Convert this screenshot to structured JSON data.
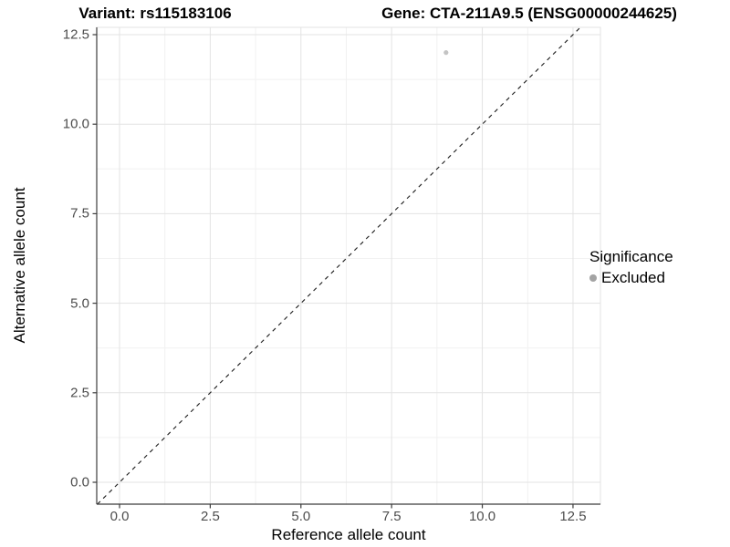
{
  "chart_data": {
    "type": "scatter",
    "titles": {
      "left": "Variant: rs115183106",
      "right": "Gene: CTA-211A9.5 (ENSG00000244625)"
    },
    "xlabel": "Reference allele count",
    "ylabel": "Alternative allele count",
    "x_ticks": {
      "values": [
        0,
        2.5,
        5,
        7.5,
        10,
        12.5
      ],
      "labels": [
        "0.0",
        "2.5",
        "5.0",
        "7.5",
        "10.0",
        "12.5"
      ]
    },
    "y_ticks": {
      "values": [
        0,
        2.5,
        5,
        7.5,
        10,
        12.5
      ],
      "labels": [
        "0.0",
        "2.5",
        "5.0",
        "7.5",
        "10.0",
        "12.5"
      ]
    },
    "xlim": [
      -0.629,
      13.256
    ],
    "ylim": [
      -0.611,
      12.704
    ],
    "grid": {
      "major": true,
      "minor": true,
      "minor_step": 1.25
    },
    "points": [
      {
        "x": 9,
        "y": 12,
        "significance": "Excluded",
        "color": "#c4c4c4",
        "radius": 2.6
      }
    ],
    "identity_line": {
      "style": "dashed",
      "slope": 1,
      "intercept": 0,
      "color": "#1a1a1a"
    },
    "legend": {
      "title": "Significance",
      "position": "right",
      "items": [
        {
          "label": "Excluded",
          "color": "#a3a3a3"
        }
      ]
    },
    "colors": {
      "background": "#ffffff",
      "panel_border": "#e3e3e3",
      "major_grid": "#e3e3e3",
      "minor_grid": "#f1f1f1",
      "axis_line": "#3c3c3c",
      "tick_mark": "#3c3c3c"
    }
  }
}
